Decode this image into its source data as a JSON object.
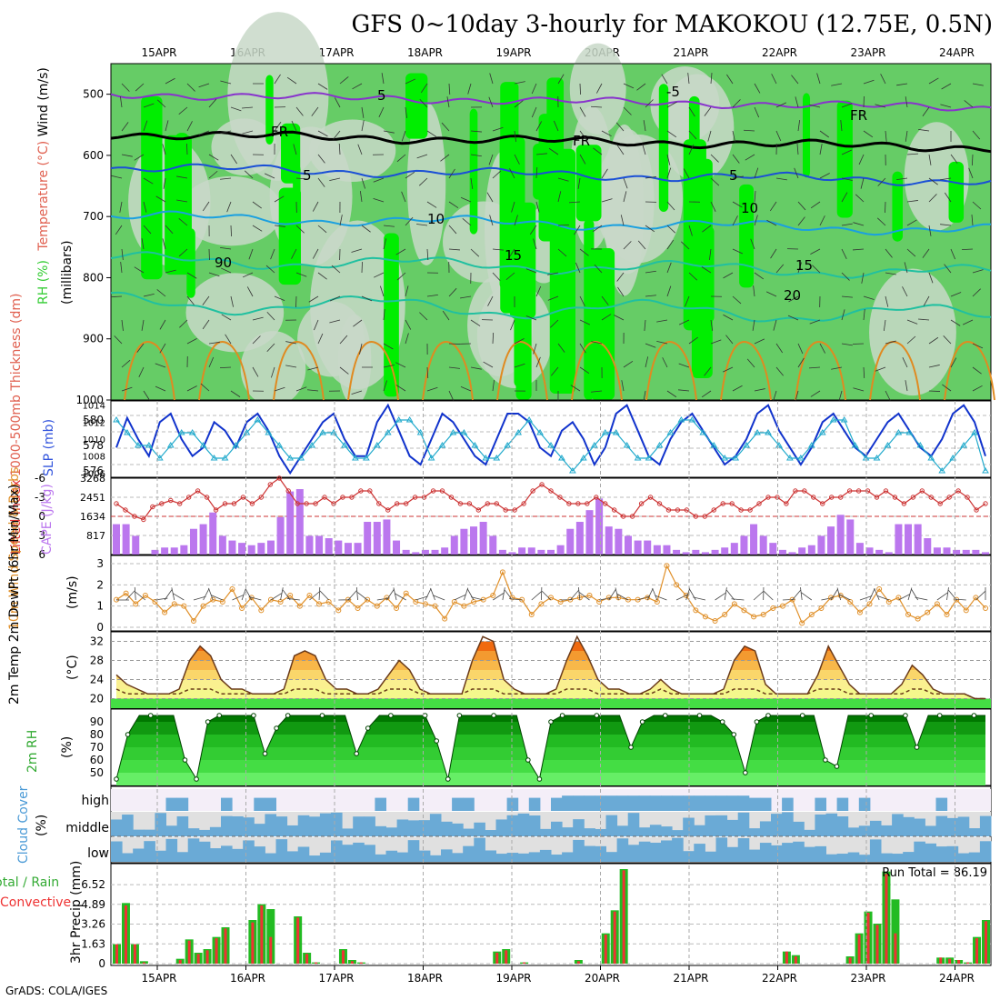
{
  "page": {
    "title": "GFS 0~10day 3-hourly for MAKOKOU (12.75E, 0.5N)",
    "credit": "GrADS: COLA/IGES",
    "days": [
      "15APR",
      "16APR",
      "17APR",
      "18APR",
      "19APR",
      "20APR",
      "21APR",
      "22APR",
      "23APR",
      "24APR"
    ]
  },
  "panels": {
    "upper": {
      "label_parts": [
        {
          "text": "RH (%)",
          "color": "#33cc33"
        },
        {
          "text": "Temperature (°C)",
          "color": "#e06050"
        },
        {
          "text": "Wind (m/s)",
          "color": "#000000"
        }
      ],
      "unit": "(millibars)",
      "y_ticks": [
        "500",
        "600",
        "700",
        "800",
        "900",
        "1000"
      ],
      "contour_labels": [
        "5",
        "FR",
        "FR",
        "FR",
        "-5",
        "5",
        "5",
        "10",
        "10",
        "15",
        "15",
        "20",
        "90"
      ]
    },
    "slp": {
      "label_left": "1000-500mb Thickness (dm)",
      "label_right": "SLP (mb)",
      "left_ticks": [
        "580",
        "578",
        "576"
      ],
      "right_ticks": [
        "1014",
        "1012",
        "1010",
        "1008",
        "1006"
      ]
    },
    "cape": {
      "label_left": "Lifted Index",
      "label_right": "CAPE (J/kg)",
      "left_ticks": [
        "-6",
        "-3",
        "0",
        "3",
        "6"
      ],
      "right_ticks": [
        "3268",
        "2451",
        "1634",
        "817"
      ]
    },
    "wind10": {
      "label": "10m Wind Speed & Barbs",
      "unit": "(m/s)",
      "ticks": [
        "3",
        "2",
        "1",
        "0"
      ]
    },
    "temp2m": {
      "label": "2m Temp 2m DewPt (6hr Min/Max)",
      "unit": "(°C)",
      "ticks": [
        "32",
        "28",
        "24",
        "20"
      ]
    },
    "rh2m": {
      "label": "2m RH",
      "unit": "(%)",
      "ticks": [
        "90",
        "80",
        "70",
        "60",
        "50"
      ]
    },
    "cloud": {
      "label": "Cloud Cover",
      "unit": "(%)",
      "levels": [
        "high",
        "middle",
        "low"
      ]
    },
    "precip": {
      "label_total": "Total / Rain",
      "label_conv": "Convective",
      "unit": "3hr Precip (mm)",
      "ticks": [
        "6.52",
        "4.89",
        "3.26",
        "1.63",
        "0"
      ],
      "run_total": "Run Total = 86.19"
    }
  },
  "colors": {
    "rh_green": "#00ee00",
    "rh_mid": "#66cc66",
    "rh_pale": "#c8d8c8",
    "temp_purple": "#8833cc",
    "temp_blue": "#1a4fd6",
    "temp_cyan": "#1aa0e0",
    "temp_teal": "#20c0a0",
    "cape_bar": "#bb77ee",
    "li_line": "#cc3333",
    "slp_dark": "#1133cc",
    "thk_cyan": "#22aacc",
    "wind_orange": "#e0902a",
    "cloud_blue": "#6aaad6",
    "cloud_grey": "#e0e0e0",
    "precip_green": "#22bb22",
    "precip_red": "#ee3333"
  },
  "chart_data": [
    {
      "type": "line",
      "title": "1000-500mb Thickness (dm) / SLP (mb)",
      "series": [
        {
          "name": "SLP (mb)",
          "values": [
            1009,
            1012.5,
            1010,
            1008,
            1012,
            1013,
            1010,
            1008,
            1009,
            1012,
            1011,
            1009,
            1012,
            1013,
            1011,
            1008,
            1006,
            1008,
            1010,
            1012,
            1013,
            1010,
            1008,
            1008,
            1012,
            1014,
            1011,
            1008,
            1007,
            1010,
            1013,
            1012,
            1010,
            1008,
            1007,
            1010,
            1013,
            1013,
            1012,
            1009,
            1008,
            1011,
            1012,
            1010,
            1007,
            1009,
            1013,
            1014,
            1011,
            1008,
            1007,
            1010,
            1012,
            1013,
            1011,
            1009,
            1007,
            1008,
            1010,
            1013,
            1014,
            1011,
            1009,
            1007,
            1009,
            1012,
            1013,
            1011,
            1009,
            1008,
            1010,
            1012,
            1013,
            1011,
            1009,
            1008,
            1010,
            1013,
            1014,
            1012,
            1008
          ]
        },
        {
          "name": "Thickness (dm)",
          "values": [
            580,
            579,
            578,
            578,
            577,
            578,
            579,
            579,
            578,
            577,
            577,
            578,
            579,
            580,
            579,
            578,
            577,
            577,
            578,
            579,
            579,
            578,
            577,
            577,
            578,
            579,
            580,
            580,
            579,
            577,
            578,
            579,
            579,
            578,
            577,
            577,
            578,
            579,
            580,
            579,
            578,
            577,
            576,
            577,
            578,
            579,
            579,
            578,
            577,
            577,
            578,
            579,
            580,
            580,
            579,
            578,
            577,
            577,
            578,
            579,
            579,
            578,
            577,
            577,
            578,
            579,
            580,
            580,
            578,
            577,
            577,
            578,
            579,
            579,
            578,
            577,
            576,
            577,
            578,
            579,
            576
          ]
        }
      ]
    },
    {
      "type": "bar",
      "title": "CAPE (J/kg) / Lifted Index",
      "series": [
        {
          "name": "CAPE (J/kg)",
          "values": [
            1300,
            1300,
            800,
            0,
            200,
            300,
            300,
            400,
            1100,
            1300,
            1800,
            800,
            600,
            500,
            400,
            500,
            600,
            1600,
            2700,
            2800,
            800,
            800,
            700,
            600,
            500,
            500,
            1400,
            1400,
            1500,
            600,
            200,
            100,
            200,
            200,
            300,
            800,
            1100,
            1200,
            1400,
            800,
            200,
            100,
            300,
            300,
            200,
            200,
            400,
            1100,
            1400,
            1900,
            2400,
            1200,
            1100,
            800,
            600,
            600,
            400,
            400,
            200,
            100,
            200,
            100,
            200,
            300,
            500,
            800,
            1300,
            800,
            500,
            200,
            100,
            300,
            400,
            800,
            1200,
            1700,
            1500,
            500,
            300,
            200,
            100,
            1300,
            1300,
            1300,
            700,
            300,
            300,
            200,
            200,
            200,
            100
          ]
        },
        {
          "name": "Lifted Index",
          "values": [
            -2,
            -1,
            0,
            0.5,
            -1.5,
            -2,
            -2.5,
            -2,
            -3,
            -4,
            -3,
            -1,
            -2,
            -2,
            -3,
            -2,
            -3,
            -5,
            -6,
            -4,
            -2,
            -2,
            -2,
            -3,
            -2,
            -3,
            -3,
            -4,
            -4,
            -2,
            -1,
            -2,
            -2,
            -3,
            -3,
            -4,
            -4,
            -3,
            -2,
            -2,
            -1,
            -2,
            -2,
            -1,
            -1,
            -2,
            -4,
            -5,
            -4,
            -3,
            -2,
            -2,
            -2,
            -3,
            -2,
            -1,
            0,
            0,
            -2,
            -3,
            -2,
            -1,
            -1,
            -1,
            0,
            0,
            -1,
            -2,
            -2,
            -1,
            -1,
            -2,
            -3,
            -3,
            -2,
            -4,
            -4,
            -3,
            -2,
            -3,
            -3,
            -4,
            -4,
            -4,
            -3,
            -4,
            -3,
            -2,
            -3,
            -4,
            -3,
            -2,
            -3,
            -4,
            -3,
            -1,
            -2
          ]
        }
      ]
    },
    {
      "type": "line",
      "title": "10m Wind Speed & Barbs (m/s)",
      "series": [
        {
          "name": "10m Wind Speed",
          "values": [
            1.3,
            1.6,
            1.1,
            1.5,
            1.2,
            0.7,
            1.1,
            1.0,
            0.3,
            1.0,
            1.3,
            1.2,
            1.8,
            0.9,
            1.4,
            0.8,
            1.3,
            1.2,
            1.5,
            1.0,
            1.5,
            1.1,
            1.2,
            0.8,
            1.3,
            0.9,
            1.3,
            1.0,
            1.4,
            0.9,
            1.6,
            1.2,
            1.1,
            1.0,
            0.4,
            1.2,
            1.0,
            1.2,
            1.3,
            1.5,
            2.6,
            1.4,
            1.3,
            0.6,
            1.1,
            1.4,
            1.2,
            1.3,
            1.4,
            1.5,
            1.2,
            1.4,
            1.4,
            1.3,
            1.3,
            1.4,
            1.2,
            2.9,
            2.0,
            1.5,
            0.8,
            0.5,
            0.3,
            0.6,
            1.1,
            0.8,
            0.5,
            0.6,
            0.9,
            1.0,
            1.3,
            0.2,
            0.6,
            0.9,
            1.4,
            1.5,
            1.2,
            0.7,
            1.1,
            1.8,
            1.2,
            1.4,
            0.6,
            0.4,
            0.7,
            1.1,
            0.6,
            1.3,
            0.8,
            1.4,
            0.9
          ]
        }
      ]
    },
    {
      "type": "area",
      "title": "2m Temp / 2m DewPt (°C)",
      "series": [
        {
          "name": "2m Temp",
          "values": [
            25,
            23,
            22,
            21,
            21,
            21,
            22,
            28,
            31,
            29,
            24,
            22,
            22,
            21,
            21,
            21,
            22,
            29,
            30,
            29,
            24,
            22,
            22,
            21,
            21,
            22,
            25,
            28,
            26,
            22,
            21,
            21,
            21,
            21,
            28,
            33,
            32,
            24,
            22,
            21,
            21,
            21,
            22,
            28,
            33,
            29,
            24,
            22,
            22,
            21,
            21,
            22,
            24,
            22,
            21,
            21,
            21,
            21,
            22,
            28,
            31,
            30,
            23,
            21,
            21,
            21,
            21,
            25,
            31,
            27,
            23,
            21,
            21,
            21,
            21,
            23,
            27,
            25,
            22,
            21,
            21,
            21,
            20,
            20
          ]
        },
        {
          "name": "2m DewPt",
          "values": [
            22,
            21,
            21,
            21,
            21,
            21,
            21,
            22,
            22,
            22,
            21,
            21,
            21,
            21,
            21,
            21,
            21,
            22,
            22,
            22,
            21,
            21,
            21,
            21,
            21,
            21,
            22,
            22,
            22,
            21,
            21,
            21,
            21,
            21,
            22,
            22,
            22,
            21,
            21,
            21,
            21,
            21,
            21,
            22,
            22,
            22,
            21,
            21,
            21,
            21,
            21,
            21,
            22,
            21,
            21,
            21,
            21,
            21,
            21,
            22,
            22,
            22,
            21,
            21,
            21,
            21,
            21,
            22,
            22,
            22,
            21,
            21,
            21,
            21,
            21,
            21,
            22,
            22,
            21,
            21,
            21,
            21,
            20,
            20
          ]
        }
      ]
    },
    {
      "type": "area",
      "title": "2m RH (%)",
      "series": [
        {
          "name": "2m RH",
          "values": [
            45,
            80,
            95,
            95,
            95,
            95,
            60,
            45,
            90,
            95,
            95,
            95,
            95,
            65,
            85,
            95,
            95,
            95,
            95,
            95,
            95,
            65,
            85,
            95,
            95,
            95,
            95,
            95,
            75,
            45,
            95,
            95,
            95,
            95,
            95,
            95,
            60,
            45,
            90,
            95,
            95,
            95,
            95,
            95,
            95,
            70,
            90,
            95,
            95,
            95,
            95,
            95,
            95,
            90,
            80,
            50,
            90,
            95,
            95,
            95,
            95,
            95,
            60,
            55,
            95,
            95,
            95,
            95,
            95,
            95,
            70,
            95,
            95,
            95,
            95,
            95,
            95
          ]
        }
      ]
    },
    {
      "type": "bar",
      "title": "3hr Precip (mm)",
      "ylim": [
        0,
        7.5
      ],
      "series": [
        {
          "name": "Total",
          "values": [
            1.6,
            5.0,
            1.6,
            0.2,
            0,
            0,
            0,
            0.4,
            2.0,
            0.9,
            1.2,
            2.2,
            3.0,
            0,
            0,
            3.6,
            4.9,
            4.5,
            0,
            0,
            3.9,
            0.9,
            0.1,
            0,
            0,
            1.2,
            0.3,
            0.1,
            0,
            0,
            0,
            0,
            0,
            0,
            0,
            0,
            0,
            0,
            0,
            0,
            0,
            0,
            1.0,
            1.2,
            0,
            0.1,
            0,
            0,
            0,
            0,
            0,
            0.3,
            0,
            0,
            2.5,
            4.4,
            7.8,
            0,
            0,
            0,
            0,
            0,
            0,
            0,
            0,
            0,
            0,
            0,
            0,
            0,
            0,
            0,
            0,
            0,
            1.0,
            0.7,
            0,
            0,
            0,
            0,
            0,
            0.6,
            2.5,
            4.3,
            3.3,
            7.6,
            5.3,
            0,
            0,
            0,
            0,
            0.5,
            0.5,
            0.3,
            0.1,
            2.2,
            3.6
          ]
        },
        {
          "name": "Convective",
          "values": [
            1.6,
            4.8,
            1.6,
            0.1,
            0,
            0,
            0,
            0.3,
            1.9,
            0.8,
            1.1,
            2.1,
            2.9,
            0,
            0,
            3.4,
            4.8,
            2.2,
            0,
            0,
            3.8,
            0.8,
            0.1,
            0,
            0,
            1.1,
            0.2,
            0.1,
            0,
            0,
            0,
            0,
            0,
            0,
            0,
            0,
            0,
            0,
            0,
            0,
            0,
            0,
            0.9,
            1.1,
            0,
            0.1,
            0,
            0,
            0,
            0,
            0,
            0.2,
            0,
            0,
            2.4,
            4.3,
            7.7,
            0,
            0,
            0,
            0,
            0,
            0,
            0,
            0,
            0,
            0,
            0,
            0,
            0,
            0,
            0,
            0,
            0,
            1.0,
            0.6,
            0,
            0,
            0,
            0,
            0,
            0.5,
            2.4,
            4.2,
            3.2,
            7.4,
            2.5,
            0,
            0,
            0,
            0,
            0.5,
            0.4,
            0.3,
            0.1,
            2.1,
            3.5
          ]
        }
      ]
    }
  ]
}
